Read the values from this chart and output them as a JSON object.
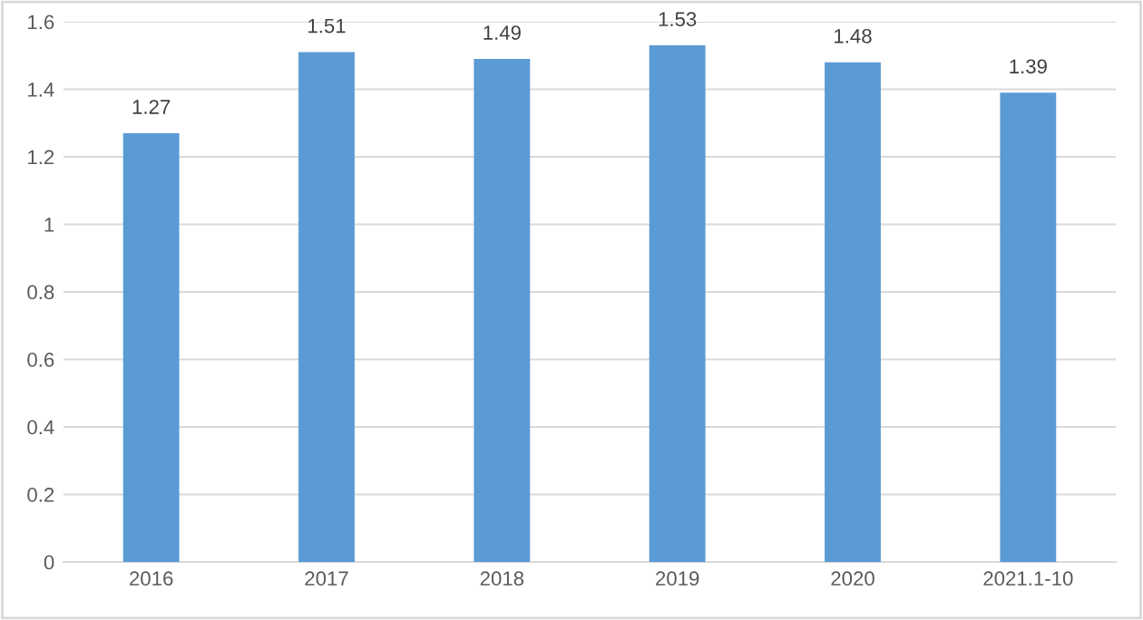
{
  "chart_data": {
    "type": "bar",
    "categories": [
      "2016",
      "2017",
      "2018",
      "2019",
      "2020",
      "2021.1-10"
    ],
    "values": [
      1.27,
      1.51,
      1.49,
      1.53,
      1.48,
      1.39
    ],
    "color": "#5b9bd5",
    "ylim": [
      0,
      1.6
    ],
    "yticks": [
      0,
      0.2,
      0.4,
      0.6,
      0.8,
      1,
      1.2,
      1.4,
      1.6
    ],
    "grid": "y",
    "data_labels": true
  }
}
